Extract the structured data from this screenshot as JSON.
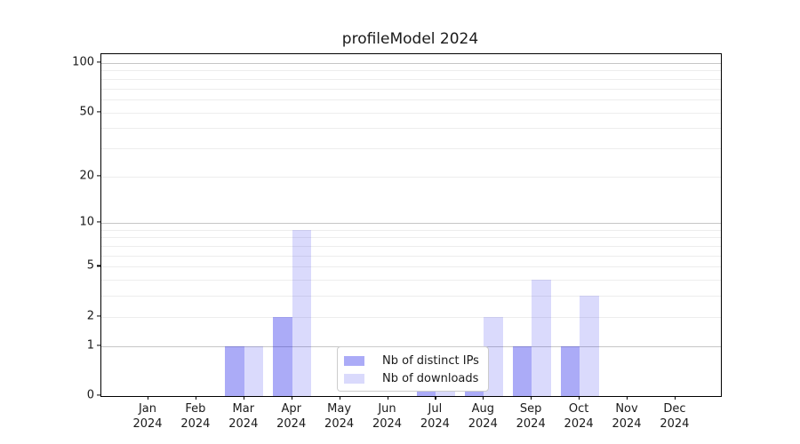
{
  "figure": {
    "title": "profileModel 2024"
  },
  "chart_data": {
    "type": "bar",
    "title": "profileModel 2024",
    "scale": "log1p (symlog-like: y position proportional to log10(1+value))",
    "x_categories": [
      "Jan",
      "Feb",
      "Mar",
      "Apr",
      "May",
      "Jun",
      "Jul",
      "Aug",
      "Sep",
      "Oct",
      "Nov",
      "Dec"
    ],
    "x_year": "2024",
    "series": [
      {
        "name": "Nb of distinct IPs",
        "color": "rgba(22,22,234,0.36)",
        "values": [
          0,
          0,
          1,
          2,
          0,
          0,
          1,
          1,
          1,
          1,
          0,
          0
        ]
      },
      {
        "name": "Nb of downloads",
        "color": "rgba(22,22,234,0.16)",
        "values": [
          0,
          0,
          1,
          9,
          0,
          0,
          1,
          2,
          4,
          3,
          0,
          0
        ]
      }
    ],
    "yticks": [
      0,
      1,
      2,
      5,
      10,
      20,
      50,
      100
    ],
    "ylim": [
      0,
      113
    ],
    "grid": {
      "major": [
        1,
        10,
        100
      ],
      "minor": [
        2,
        3,
        4,
        5,
        6,
        7,
        8,
        9,
        20,
        30,
        40,
        50,
        60,
        70,
        80,
        90
      ]
    },
    "legend": {
      "entries": [
        "Nb of distinct IPs",
        "Nb of downloads"
      ],
      "position": "inside lower-center"
    }
  },
  "colors": {
    "background": "#ffffff",
    "bar_distinct_ips": "rgba(22,22,234,0.36)",
    "bar_downloads": "rgba(22,22,234,0.16)",
    "major_grid": "#c6c6c6",
    "minor_grid": "#ededed",
    "axis_spine": "#000000",
    "text": "#1a1a1a",
    "legend_border": "#cccccc",
    "legend_background": "#ffffff"
  }
}
